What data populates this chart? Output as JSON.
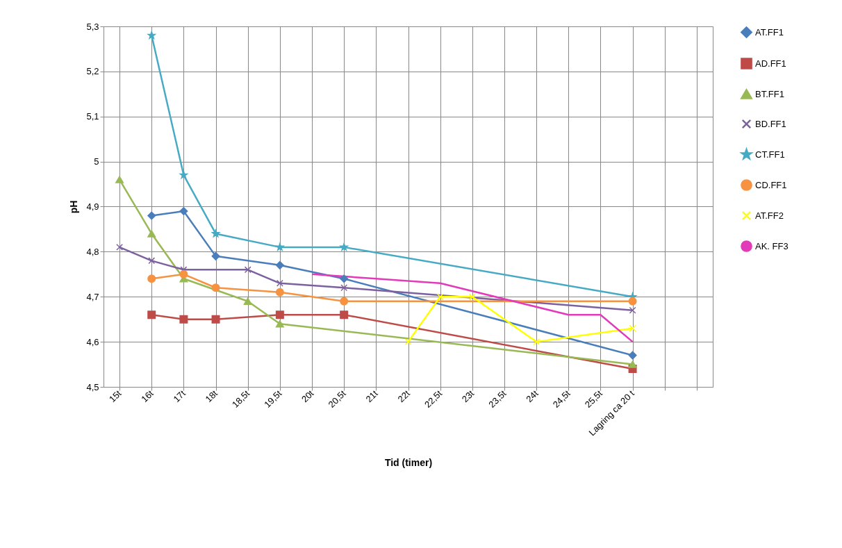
{
  "chart_data": {
    "type": "line",
    "xlabel": "Tid (timer)",
    "ylabel": "pH",
    "categories": [
      "15t",
      "16t",
      "17t",
      "18t",
      "18,5t",
      "19,5t",
      "20t",
      "20,5t",
      "21t",
      "22t",
      "22,5t",
      "23t",
      "23,5t",
      "24t",
      "24,5t",
      "25,5t",
      "Lagring ca 20 t",
      null,
      null
    ],
    "ylim": [
      4.5,
      5.3
    ],
    "yticks": [
      {
        "value": 4.5,
        "label": "4,5"
      },
      {
        "value": 4.6,
        "label": "4,6"
      },
      {
        "value": 4.7,
        "label": "4,7"
      },
      {
        "value": 4.8,
        "label": "4,8"
      },
      {
        "value": 4.9,
        "label": "4,9"
      },
      {
        "value": 5,
        "label": "5"
      },
      {
        "value": 5.1,
        "label": "5,1"
      },
      {
        "value": 5.2,
        "label": "5,2"
      },
      {
        "value": 5.3,
        "label": "5,3"
      }
    ],
    "grid": true,
    "legend": "right",
    "line_style": "solid",
    "series": [
      {
        "name": "AT.FF1",
        "color": "#4a7ebb",
        "marker": "diamond",
        "values": [
          null,
          4.88,
          4.89,
          4.79,
          null,
          4.77,
          null,
          4.74,
          null,
          null,
          null,
          null,
          null,
          null,
          null,
          null,
          4.57,
          null,
          null
        ]
      },
      {
        "name": "AD.FF1",
        "color": "#be4b48",
        "marker": "square",
        "values": [
          null,
          4.66,
          4.65,
          4.65,
          null,
          4.66,
          null,
          4.66,
          null,
          null,
          null,
          null,
          null,
          null,
          null,
          null,
          4.54,
          null,
          null
        ]
      },
      {
        "name": "BT.FF1",
        "color": "#98b954",
        "marker": "triangle",
        "values": [
          4.96,
          4.84,
          4.74,
          null,
          4.69,
          4.64,
          null,
          null,
          null,
          null,
          null,
          null,
          null,
          null,
          null,
          null,
          4.55,
          null,
          null
        ]
      },
      {
        "name": "BD.FF1",
        "color": "#7d60a0",
        "marker": "cross",
        "values": [
          4.81,
          4.78,
          4.76,
          null,
          4.76,
          4.73,
          null,
          4.72,
          null,
          null,
          null,
          null,
          null,
          null,
          null,
          null,
          4.67,
          null,
          null
        ]
      },
      {
        "name": "CT.FF1",
        "color": "#46aac5",
        "marker": "star",
        "values": [
          null,
          5.28,
          4.97,
          4.84,
          null,
          4.81,
          null,
          4.81,
          null,
          null,
          null,
          null,
          null,
          null,
          null,
          null,
          4.7,
          null,
          null
        ]
      },
      {
        "name": "CD.FF1",
        "color": "#f69240",
        "marker": "circle",
        "values": [
          null,
          4.74,
          4.75,
          4.72,
          null,
          4.71,
          null,
          4.69,
          null,
          null,
          null,
          null,
          null,
          null,
          null,
          null,
          4.69,
          null,
          null
        ]
      },
      {
        "name": "AT.FF2",
        "color": "#ffff00",
        "marker": "cross",
        "values": [
          null,
          null,
          null,
          null,
          null,
          null,
          null,
          null,
          null,
          4.6,
          4.7,
          4.7,
          null,
          4.6,
          null,
          null,
          4.63,
          null,
          null
        ]
      },
      {
        "name": "AK. FF3",
        "color": "#e33ab9",
        "marker": "none",
        "values": [
          null,
          null,
          null,
          null,
          null,
          null,
          4.75,
          null,
          4.74,
          null,
          4.73,
          null,
          null,
          null,
          4.66,
          4.66,
          4.6,
          null,
          null
        ]
      }
    ]
  }
}
